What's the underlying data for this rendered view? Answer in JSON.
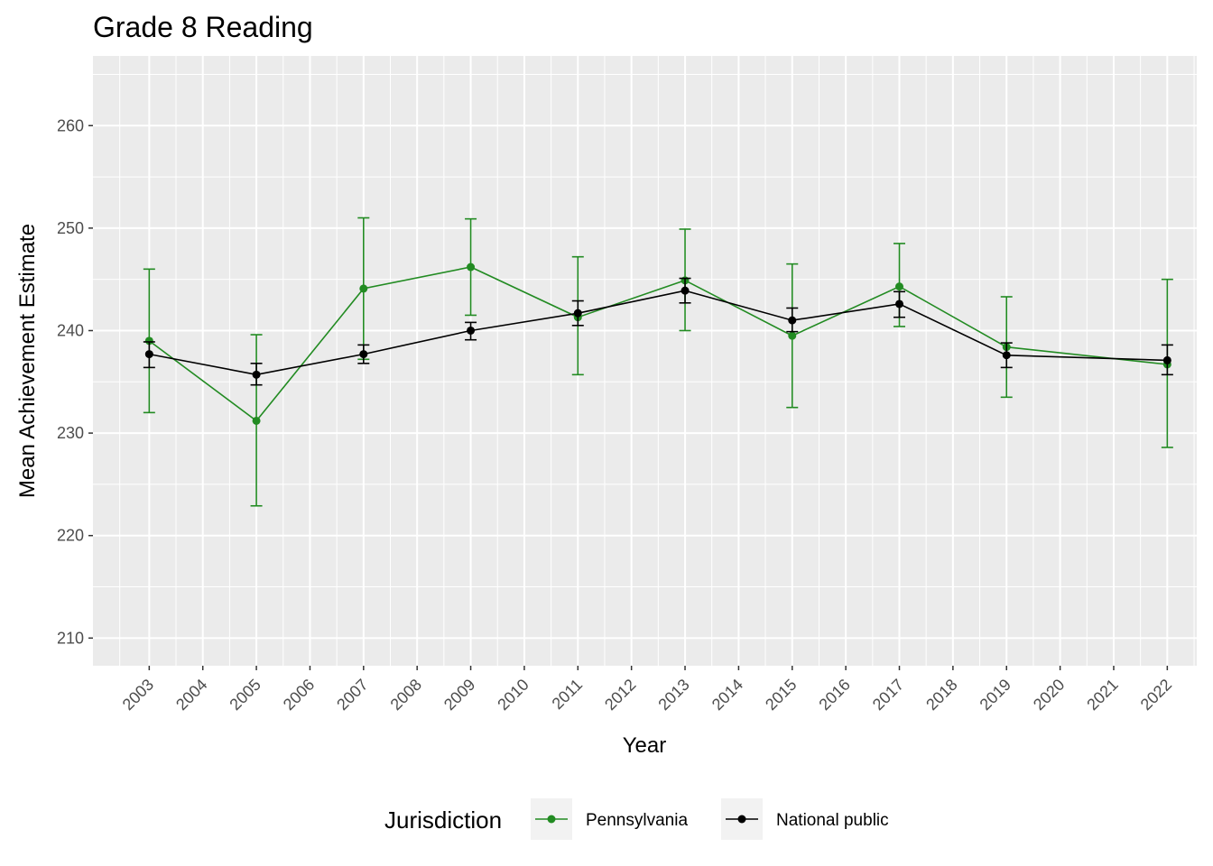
{
  "chart_data": {
    "type": "line",
    "title": "Grade 8 Reading",
    "xlabel": "Year",
    "ylabel": "Mean Achievement Estimate",
    "x_ticks": [
      "2003",
      "2004",
      "2005",
      "2006",
      "2007",
      "2008",
      "2009",
      "2010",
      "2011",
      "2012",
      "2013",
      "2014",
      "2015",
      "2016",
      "2017",
      "2018",
      "2019",
      "2020",
      "2021",
      "2022"
    ],
    "y_ticks": [
      210,
      220,
      230,
      240,
      250,
      260
    ],
    "ylim": [
      207.3,
      266.8
    ],
    "grid": true,
    "legend": {
      "title": "Jurisdiction",
      "position": "bottom"
    },
    "series": [
      {
        "name": "Pennsylvania",
        "color": "#228B22",
        "points": [
          {
            "year": 2003,
            "value": 239.0,
            "lower": 232.0,
            "upper": 246.0
          },
          {
            "year": 2005,
            "value": 231.2,
            "lower": 222.9,
            "upper": 239.6
          },
          {
            "year": 2007,
            "value": 244.1,
            "lower": 237.2,
            "upper": 251.0
          },
          {
            "year": 2009,
            "value": 246.2,
            "lower": 241.5,
            "upper": 250.9
          },
          {
            "year": 2011,
            "value": 241.3,
            "lower": 235.7,
            "upper": 247.2
          },
          {
            "year": 2013,
            "value": 244.9,
            "lower": 240.0,
            "upper": 249.9
          },
          {
            "year": 2015,
            "value": 239.5,
            "lower": 232.5,
            "upper": 246.5
          },
          {
            "year": 2017,
            "value": 244.3,
            "lower": 240.4,
            "upper": 248.5
          },
          {
            "year": 2019,
            "value": 238.4,
            "lower": 233.5,
            "upper": 243.3
          },
          {
            "year": 2022,
            "value": 236.7,
            "lower": 228.6,
            "upper": 245.0
          }
        ]
      },
      {
        "name": "National public",
        "color": "#000000",
        "points": [
          {
            "year": 2003,
            "value": 237.7,
            "lower": 236.4,
            "upper": 238.9
          },
          {
            "year": 2005,
            "value": 235.7,
            "lower": 234.7,
            "upper": 236.8
          },
          {
            "year": 2007,
            "value": 237.7,
            "lower": 236.8,
            "upper": 238.6
          },
          {
            "year": 2009,
            "value": 240.0,
            "lower": 239.1,
            "upper": 240.8
          },
          {
            "year": 2011,
            "value": 241.7,
            "lower": 240.5,
            "upper": 242.9
          },
          {
            "year": 2013,
            "value": 243.9,
            "lower": 242.7,
            "upper": 245.1
          },
          {
            "year": 2015,
            "value": 241.0,
            "lower": 239.9,
            "upper": 242.2
          },
          {
            "year": 2017,
            "value": 242.6,
            "lower": 241.3,
            "upper": 243.8
          },
          {
            "year": 2019,
            "value": 237.6,
            "lower": 236.4,
            "upper": 238.8
          },
          {
            "year": 2022,
            "value": 237.1,
            "lower": 235.7,
            "upper": 238.6
          }
        ]
      }
    ]
  }
}
